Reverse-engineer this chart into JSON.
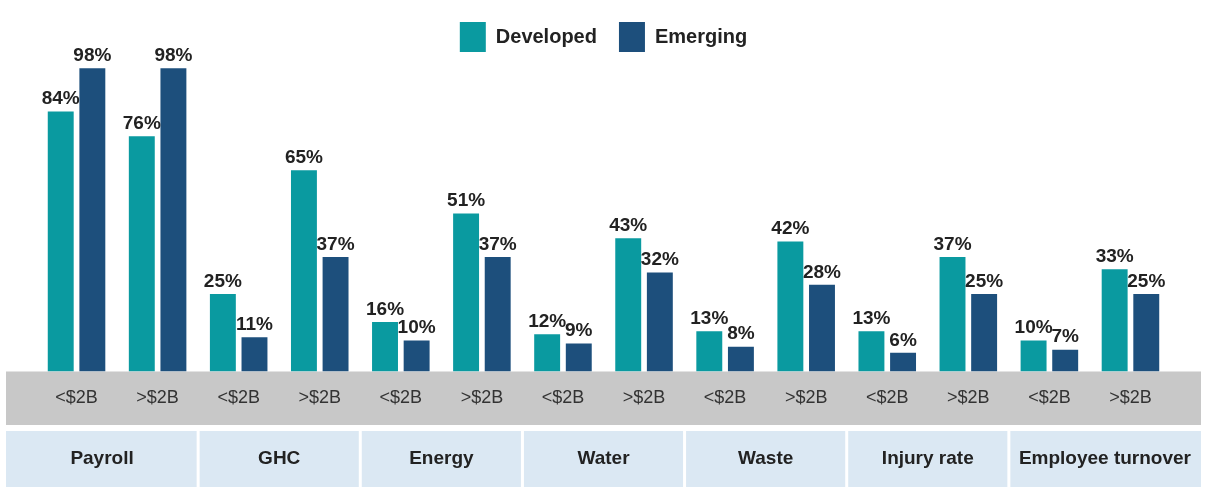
{
  "chart_data": {
    "type": "bar",
    "categories": [
      "<$2B",
      ">$2B",
      "<$2B",
      ">$2B",
      "<$2B",
      ">$2B",
      "<$2B",
      ">$2B",
      "<$2B",
      ">$2B",
      "<$2B",
      ">$2B",
      "<$2B",
      ">$2B"
    ],
    "series": [
      {
        "name": "Developed",
        "color": "#0a9aa0",
        "values": [
          84,
          76,
          25,
          65,
          16,
          51,
          12,
          43,
          13,
          42,
          13,
          37,
          10,
          33
        ],
        "value_labels": [
          "84%",
          "76%",
          "25%",
          "65%",
          "16%",
          "51%",
          "12%",
          "43%",
          "13%",
          "42%",
          "13%",
          "37%",
          "10%",
          "33%"
        ]
      },
      {
        "name": "Emerging",
        "color": "#1d4f7c",
        "values": [
          98,
          98,
          11,
          37,
          10,
          37,
          9,
          32,
          8,
          28,
          6,
          25,
          7,
          25
        ],
        "value_labels": [
          "98%",
          "98%",
          "11%",
          "37%",
          "10%",
          "37%",
          "9%",
          "32%",
          "8%",
          "28%",
          "6%",
          "25%",
          "7%",
          "25%"
        ]
      }
    ],
    "annotations": [
      "Payroll",
      "GHC",
      "Energy",
      "Water",
      "Waste",
      "Injury rate",
      "Employee turnover"
    ],
    "legend": "top",
    "grid": false,
    "tick_labels": "x"
  }
}
